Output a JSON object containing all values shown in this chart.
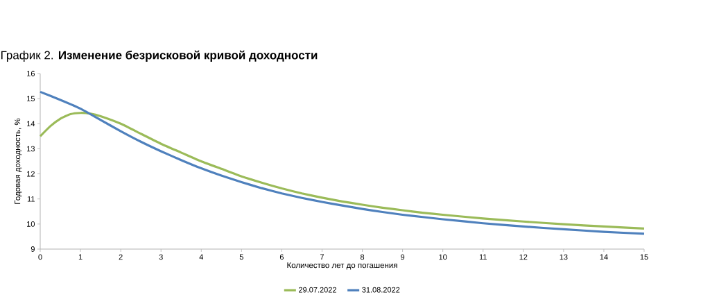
{
  "chart_data": {
    "type": "line",
    "title": "График 2. **Изменение безрисковой кривой доходности**",
    "xlabel": "Количество лет до погашения",
    "ylabel": "Годовая доходность, %",
    "xlim": [
      0,
      15
    ],
    "xticks": [
      0,
      1,
      2,
      3,
      4,
      5,
      6,
      7,
      8,
      9,
      10,
      11,
      12,
      13,
      14,
      15
    ],
    "ylim": [
      9,
      16
    ],
    "yticks": [
      9,
      10,
      11,
      12,
      13,
      14,
      15,
      16
    ],
    "grid": false,
    "legend": "bottom",
    "marker": "none",
    "line_style": "solid",
    "series": [
      {
        "name": "29.07.2022",
        "color": "#9bbb59",
        "x": [
          0,
          0.25,
          0.5,
          0.75,
          1,
          1.25,
          1.5,
          2,
          2.5,
          3,
          3.5,
          4,
          4.5,
          5,
          5.5,
          6,
          6.5,
          7,
          7.5,
          8,
          8.5,
          9,
          9.5,
          10,
          11,
          12,
          13,
          14,
          15
        ],
        "values": [
          13.5,
          13.9,
          14.2,
          14.38,
          14.43,
          14.4,
          14.3,
          14.0,
          13.6,
          13.2,
          12.85,
          12.5,
          12.2,
          11.9,
          11.65,
          11.42,
          11.22,
          11.05,
          10.9,
          10.77,
          10.65,
          10.55,
          10.45,
          10.37,
          10.22,
          10.1,
          9.99,
          9.9,
          9.82
        ]
      },
      {
        "name": "31.08.2022",
        "color": "#4f81bd",
        "x": [
          0,
          0.5,
          1,
          1.5,
          2,
          2.5,
          3,
          3.5,
          4,
          4.5,
          5,
          5.5,
          6,
          6.5,
          7,
          7.5,
          8,
          8.5,
          9,
          9.5,
          10,
          11,
          12,
          13,
          14,
          15
        ],
        "values": [
          15.27,
          14.95,
          14.6,
          14.15,
          13.7,
          13.28,
          12.9,
          12.55,
          12.22,
          11.93,
          11.67,
          11.43,
          11.22,
          11.04,
          10.88,
          10.74,
          10.6,
          10.48,
          10.37,
          10.28,
          10.19,
          10.03,
          9.9,
          9.79,
          9.69,
          9.61
        ]
      }
    ]
  }
}
